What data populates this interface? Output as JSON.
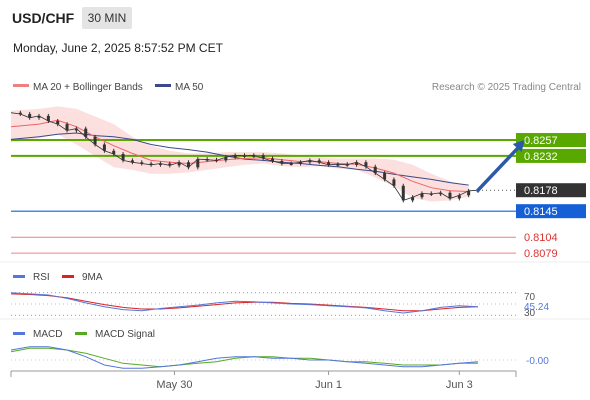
{
  "header": {
    "symbol": "USD/CHF",
    "timeframe": "30 MIN",
    "timestamp": "Monday, June 2, 2025 8:57:52 PM CET"
  },
  "colors": {
    "price": "#333333",
    "ma20": "#f06464",
    "bollinger_fill": "#fbd9d9",
    "ma50": "#3a4a8c",
    "resistance": "#58a800",
    "pivot": "#1560d6",
    "support": "#f08080",
    "arrow": "#2d5aa8",
    "rsi": "#5577dd",
    "rsi_ma": "#dd2222",
    "macd": "#5577dd",
    "macd_signal": "#55aa22"
  },
  "chart_data": [
    {
      "type": "line",
      "panel": "price",
      "legend": [
        {
          "name": "MA 20 + Bollinger Bands",
          "color": "#f08080"
        },
        {
          "name": "MA 50",
          "color": "#3a4a8c"
        }
      ],
      "source": "Research © 2025 Trading Central",
      "xlabels": [
        "May 30",
        "Jun 1",
        "Jun 3"
      ],
      "x_range": [
        0,
        100
      ],
      "xlabel_positions": [
        35,
        68,
        96
      ],
      "ylim": [
        0.8065,
        0.832
      ],
      "price": [
        [
          0,
          0.83
        ],
        [
          2,
          0.8298
        ],
        [
          4,
          0.8292
        ],
        [
          6,
          0.8295
        ],
        [
          8,
          0.8287
        ],
        [
          10,
          0.8282
        ],
        [
          12,
          0.8272
        ],
        [
          14,
          0.8275
        ],
        [
          16,
          0.8262
        ],
        [
          18,
          0.825
        ],
        [
          20,
          0.824
        ],
        [
          22,
          0.8235
        ],
        [
          24,
          0.8225
        ],
        [
          26,
          0.8222
        ],
        [
          28,
          0.822
        ],
        [
          30,
          0.8218
        ],
        [
          32,
          0.822
        ],
        [
          34,
          0.8217
        ],
        [
          36,
          0.8222
        ],
        [
          38,
          0.8214
        ],
        [
          40,
          0.8227
        ],
        [
          42,
          0.8226
        ],
        [
          44,
          0.8225
        ],
        [
          46,
          0.823
        ],
        [
          48,
          0.8233
        ],
        [
          50,
          0.8232
        ],
        [
          52,
          0.8233
        ],
        [
          54,
          0.8228
        ],
        [
          56,
          0.8224
        ],
        [
          58,
          0.822
        ],
        [
          60,
          0.822
        ],
        [
          62,
          0.8222
        ],
        [
          64,
          0.8225
        ],
        [
          66,
          0.8222
        ],
        [
          68,
          0.8218
        ],
        [
          70,
          0.8219
        ],
        [
          72,
          0.8218
        ],
        [
          74,
          0.8222
        ],
        [
          76,
          0.8215
        ],
        [
          78,
          0.8205
        ],
        [
          80,
          0.8195
        ],
        [
          82,
          0.8185
        ],
        [
          84,
          0.8162
        ],
        [
          86,
          0.8167
        ],
        [
          88,
          0.8173
        ],
        [
          90,
          0.8172
        ],
        [
          92,
          0.8174
        ],
        [
          94,
          0.8165
        ],
        [
          96,
          0.817
        ],
        [
          98,
          0.8177
        ],
        [
          100,
          0.8178
        ]
      ],
      "ma20": [
        [
          0,
          0.8278
        ],
        [
          6,
          0.8282
        ],
        [
          10,
          0.8288
        ],
        [
          14,
          0.8278
        ],
        [
          18,
          0.8262
        ],
        [
          22,
          0.8248
        ],
        [
          26,
          0.8236
        ],
        [
          30,
          0.8225
        ],
        [
          34,
          0.8222
        ],
        [
          38,
          0.822
        ],
        [
          42,
          0.8223
        ],
        [
          46,
          0.8226
        ],
        [
          50,
          0.8228
        ],
        [
          54,
          0.8229
        ],
        [
          58,
          0.8226
        ],
        [
          62,
          0.8223
        ],
        [
          66,
          0.8223
        ],
        [
          70,
          0.822
        ],
        [
          74,
          0.8219
        ],
        [
          78,
          0.8213
        ],
        [
          82,
          0.8205
        ],
        [
          86,
          0.8192
        ],
        [
          90,
          0.8182
        ],
        [
          94,
          0.8177
        ],
        [
          98,
          0.8176
        ]
      ],
      "bollinger_upper": [
        [
          0,
          0.8303
        ],
        [
          6,
          0.8306
        ],
        [
          10,
          0.831
        ],
        [
          14,
          0.8306
        ],
        [
          18,
          0.8294
        ],
        [
          22,
          0.8282
        ],
        [
          26,
          0.8262
        ],
        [
          30,
          0.8248
        ],
        [
          34,
          0.824
        ],
        [
          38,
          0.8236
        ],
        [
          42,
          0.8236
        ],
        [
          46,
          0.8238
        ],
        [
          50,
          0.8238
        ],
        [
          54,
          0.8238
        ],
        [
          58,
          0.8236
        ],
        [
          62,
          0.8232
        ],
        [
          66,
          0.823
        ],
        [
          70,
          0.8228
        ],
        [
          74,
          0.8228
        ],
        [
          78,
          0.8228
        ],
        [
          82,
          0.8226
        ],
        [
          86,
          0.8218
        ],
        [
          90,
          0.8204
        ],
        [
          94,
          0.8192
        ],
        [
          98,
          0.8184
        ]
      ],
      "bollinger_lower": [
        [
          0,
          0.8253
        ],
        [
          6,
          0.826
        ],
        [
          10,
          0.8266
        ],
        [
          14,
          0.825
        ],
        [
          18,
          0.8232
        ],
        [
          22,
          0.8214
        ],
        [
          26,
          0.821
        ],
        [
          30,
          0.8204
        ],
        [
          34,
          0.8204
        ],
        [
          38,
          0.8206
        ],
        [
          42,
          0.821
        ],
        [
          46,
          0.8214
        ],
        [
          50,
          0.8218
        ],
        [
          54,
          0.822
        ],
        [
          58,
          0.8216
        ],
        [
          62,
          0.8214
        ],
        [
          66,
          0.8216
        ],
        [
          70,
          0.8212
        ],
        [
          74,
          0.821
        ],
        [
          78,
          0.8198
        ],
        [
          82,
          0.8184
        ],
        [
          86,
          0.8166
        ],
        [
          90,
          0.816
        ],
        [
          94,
          0.8162
        ],
        [
          98,
          0.8168
        ]
      ],
      "ma50": [
        [
          0,
          0.8258
        ],
        [
          6,
          0.8262
        ],
        [
          10,
          0.8266
        ],
        [
          14,
          0.8268
        ],
        [
          18,
          0.8264
        ],
        [
          22,
          0.8262
        ],
        [
          26,
          0.8258
        ],
        [
          30,
          0.825
        ],
        [
          34,
          0.8245
        ],
        [
          38,
          0.8242
        ],
        [
          42,
          0.8238
        ],
        [
          46,
          0.8232
        ],
        [
          50,
          0.8227
        ],
        [
          54,
          0.8225
        ],
        [
          58,
          0.8222
        ],
        [
          62,
          0.822
        ],
        [
          66,
          0.8217
        ],
        [
          70,
          0.8215
        ],
        [
          74,
          0.8211
        ],
        [
          78,
          0.8208
        ],
        [
          82,
          0.8203
        ],
        [
          86,
          0.8199
        ],
        [
          90,
          0.8195
        ],
        [
          94,
          0.819
        ],
        [
          98,
          0.8186
        ]
      ],
      "levels": [
        {
          "value": "0.8257",
          "kind": "resistance"
        },
        {
          "value": "0.8232",
          "kind": "resistance"
        },
        {
          "value": "0.8178",
          "kind": "last"
        },
        {
          "value": "0.8145",
          "kind": "pivot"
        },
        {
          "value": "0.8104",
          "kind": "support"
        },
        {
          "value": "0.8079",
          "kind": "support"
        }
      ],
      "arrow": {
        "from": [
          100,
          0.8178
        ],
        "to": [
          110,
          0.8257
        ]
      }
    },
    {
      "type": "line",
      "panel": "rsi",
      "legend": [
        {
          "name": "RSI",
          "color": "#5577dd"
        },
        {
          "name": "9MA",
          "color": "#dd2222"
        }
      ],
      "ylim": [
        25,
        75
      ],
      "levels": [
        "70",
        "30"
      ],
      "last_value": "45.24",
      "rsi": [
        [
          0,
          70
        ],
        [
          4,
          68
        ],
        [
          8,
          66
        ],
        [
          12,
          60
        ],
        [
          16,
          52
        ],
        [
          20,
          45
        ],
        [
          24,
          40
        ],
        [
          28,
          38
        ],
        [
          32,
          42
        ],
        [
          36,
          45
        ],
        [
          40,
          48
        ],
        [
          44,
          52
        ],
        [
          48,
          55
        ],
        [
          52,
          54
        ],
        [
          56,
          52
        ],
        [
          60,
          50
        ],
        [
          64,
          49
        ],
        [
          68,
          47
        ],
        [
          72,
          45
        ],
        [
          76,
          43
        ],
        [
          80,
          38
        ],
        [
          84,
          34
        ],
        [
          88,
          38
        ],
        [
          92,
          44
        ],
        [
          96,
          47
        ],
        [
          100,
          45
        ]
      ],
      "rsi_ma": [
        [
          0,
          68
        ],
        [
          4,
          67
        ],
        [
          8,
          65
        ],
        [
          12,
          61
        ],
        [
          16,
          55
        ],
        [
          20,
          49
        ],
        [
          24,
          44
        ],
        [
          28,
          41
        ],
        [
          32,
          41
        ],
        [
          36,
          43
        ],
        [
          40,
          46
        ],
        [
          44,
          49
        ],
        [
          48,
          52
        ],
        [
          52,
          53
        ],
        [
          56,
          53
        ],
        [
          60,
          51
        ],
        [
          64,
          50
        ],
        [
          68,
          48
        ],
        [
          72,
          46
        ],
        [
          76,
          44
        ],
        [
          80,
          41
        ],
        [
          84,
          38
        ],
        [
          88,
          38
        ],
        [
          92,
          41
        ],
        [
          96,
          44
        ],
        [
          100,
          45
        ]
      ]
    },
    {
      "type": "line",
      "panel": "macd",
      "legend": [
        {
          "name": "MACD",
          "color": "#5577dd"
        },
        {
          "name": "MACD Signal",
          "color": "#55aa22"
        }
      ],
      "ylim": [
        -0.0012,
        0.0012
      ],
      "last_value": "-0.00",
      "macd": [
        [
          0,
          0.0006
        ],
        [
          4,
          0.0008
        ],
        [
          8,
          0.0008
        ],
        [
          12,
          0.0006
        ],
        [
          16,
          0.0002
        ],
        [
          20,
          -0.0003
        ],
        [
          24,
          -0.0005
        ],
        [
          28,
          -0.0005
        ],
        [
          32,
          -0.0004
        ],
        [
          36,
          -0.0003
        ],
        [
          40,
          -0.0001
        ],
        [
          44,
          0.0001
        ],
        [
          48,
          0.0002
        ],
        [
          52,
          0.0002
        ],
        [
          56,
          0.0001
        ],
        [
          60,
          0.0001
        ],
        [
          64,
          0.0
        ],
        [
          68,
          0.0
        ],
        [
          72,
          -0.0001
        ],
        [
          76,
          -0.0002
        ],
        [
          80,
          -0.0003
        ],
        [
          84,
          -0.0004
        ],
        [
          88,
          -0.0004
        ],
        [
          92,
          -0.0003
        ],
        [
          96,
          -0.0002
        ],
        [
          100,
          -0.0001
        ]
      ],
      "macd_signal": [
        [
          0,
          0.0005
        ],
        [
          4,
          0.0007
        ],
        [
          8,
          0.0007
        ],
        [
          12,
          0.0006
        ],
        [
          16,
          0.0004
        ],
        [
          20,
          0.0001
        ],
        [
          24,
          -0.0002
        ],
        [
          28,
          -0.0003
        ],
        [
          32,
          -0.0004
        ],
        [
          36,
          -0.0003
        ],
        [
          40,
          -0.0002
        ],
        [
          44,
          -0.0001
        ],
        [
          48,
          0.0001
        ],
        [
          52,
          0.0002
        ],
        [
          56,
          0.0002
        ],
        [
          60,
          0.0001
        ],
        [
          64,
          0.0001
        ],
        [
          68,
          0.0
        ],
        [
          72,
          -0.0001
        ],
        [
          76,
          -0.0001
        ],
        [
          80,
          -0.0002
        ],
        [
          84,
          -0.0003
        ],
        [
          88,
          -0.0003
        ],
        [
          92,
          -0.0003
        ],
        [
          96,
          -0.0002
        ],
        [
          100,
          -0.0002
        ]
      ]
    }
  ]
}
